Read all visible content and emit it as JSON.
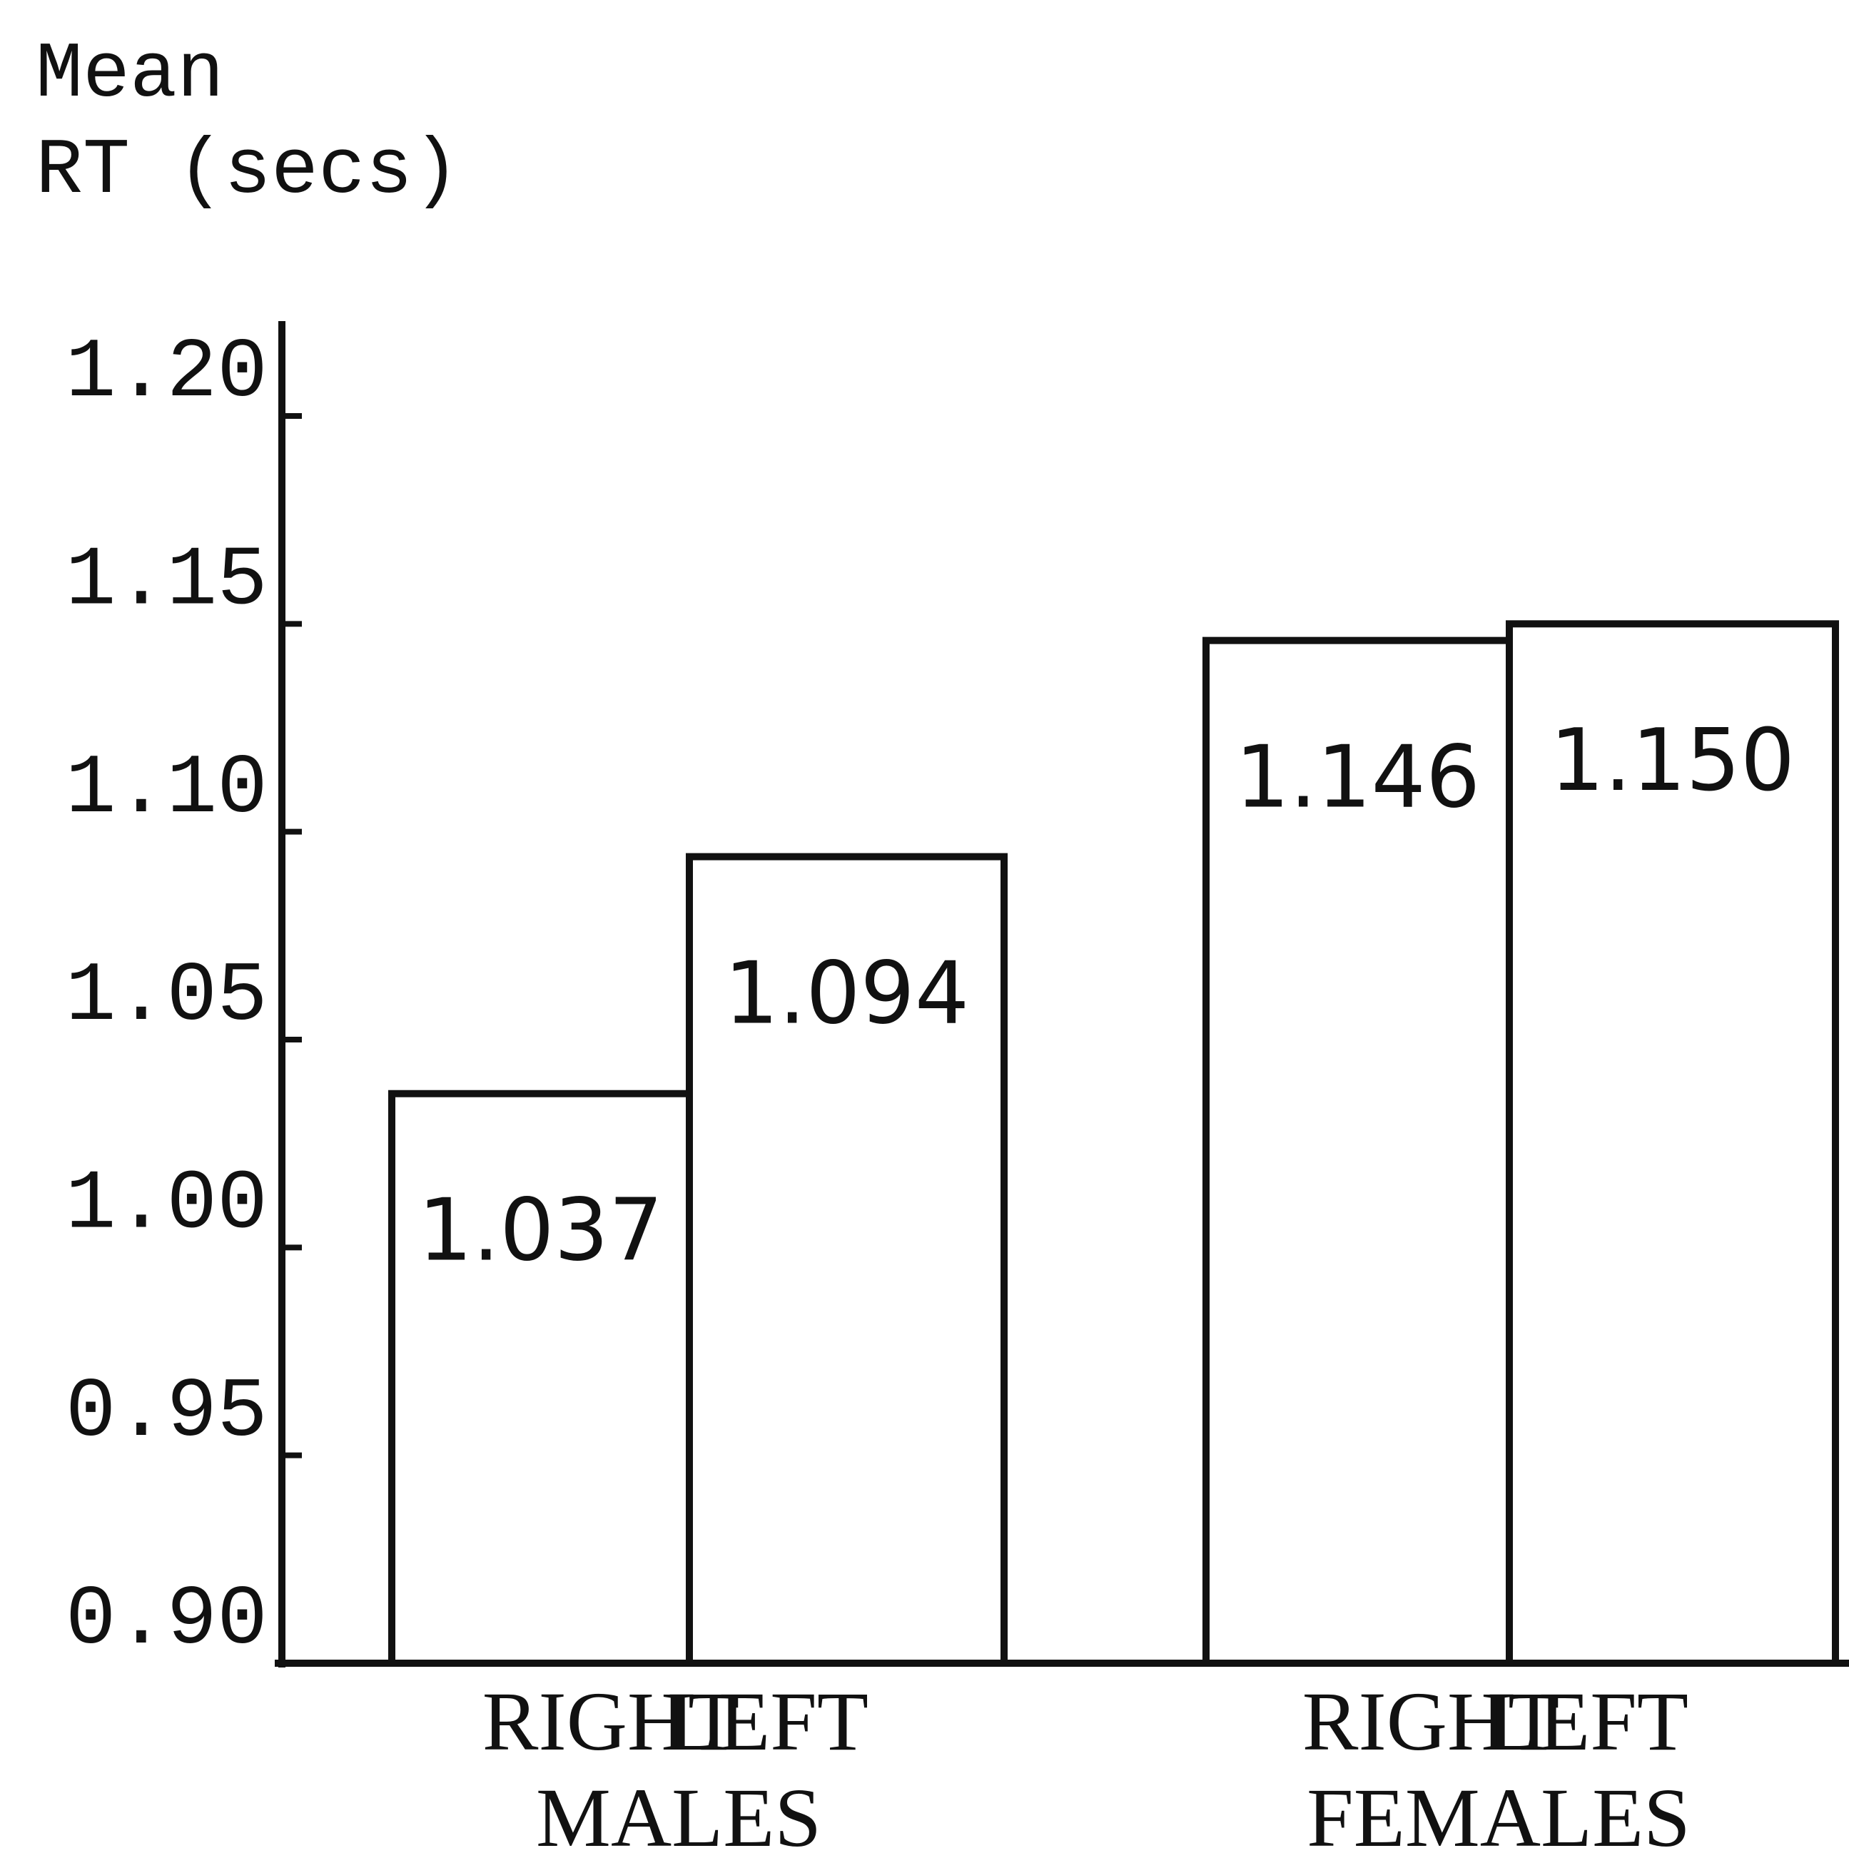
{
  "chart_data": {
    "type": "bar",
    "y_label": [
      "Mean",
      "RT (secs)"
    ],
    "categories": [
      "RIGHT",
      "LEFT",
      "RIGHT",
      "LEFT"
    ],
    "groups": [
      "MALES",
      "FEMALES"
    ],
    "values": [
      1.037,
      1.094,
      1.146,
      1.15
    ],
    "value_labels": [
      "1.037",
      "1.094",
      "1.146",
      "1.150"
    ],
    "color": "#ffffff",
    "edge_color": "#111111",
    "ylim": [
      0.9,
      1.2
    ],
    "yticks": [
      {
        "value": 0.9,
        "label": "0.90"
      },
      0.95,
      {
        "value": 1.0,
        "label": "1.00"
      },
      1.05,
      {
        "value": 1.1,
        "label": "1.10"
      },
      1.15,
      {
        "value": 1.2,
        "label": "1.20"
      }
    ],
    "grid": false
  }
}
